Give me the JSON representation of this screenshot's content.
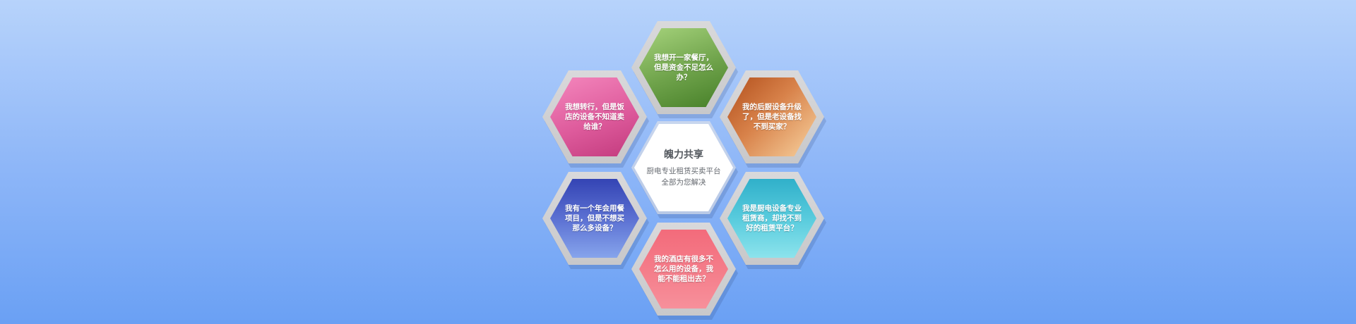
{
  "center": {
    "title": "魄力共享",
    "line1": "厨电专业租赁买卖平台",
    "line2": "全部为您解决"
  },
  "hexagons": [
    {
      "position": "top",
      "text": "我想开一家餐厅，但是资金不足怎么办？",
      "color_from": "#9ccb70",
      "color_to": "#4f8a2e"
    },
    {
      "position": "upper-left",
      "text": "我想转行，但是饭店的设备不知道卖给谁？",
      "color_from": "#f27ab4",
      "color_to": "#c9387c"
    },
    {
      "position": "upper-right",
      "text": "我的后厨设备升级了，但是老设备找不到买家？",
      "color_from": "#b9541f",
      "color_to": "#f6c98f"
    },
    {
      "position": "lower-left",
      "text": "我有一个年会用餐项目，但是不想买那么多设备？",
      "color_from": "#3847b8",
      "color_to": "#7d9ae6"
    },
    {
      "position": "lower-right",
      "text": "我是厨电设备专业租赁商，却找不到好的租赁平台？",
      "color_from": "#35b5cf",
      "color_to": "#7fdde8"
    },
    {
      "position": "bottom",
      "text": "我的酒店有很多不怎么用的设备，我能不能租出去？",
      "color_from": "#f77a87",
      "color_to": "#f25a6b"
    }
  ]
}
